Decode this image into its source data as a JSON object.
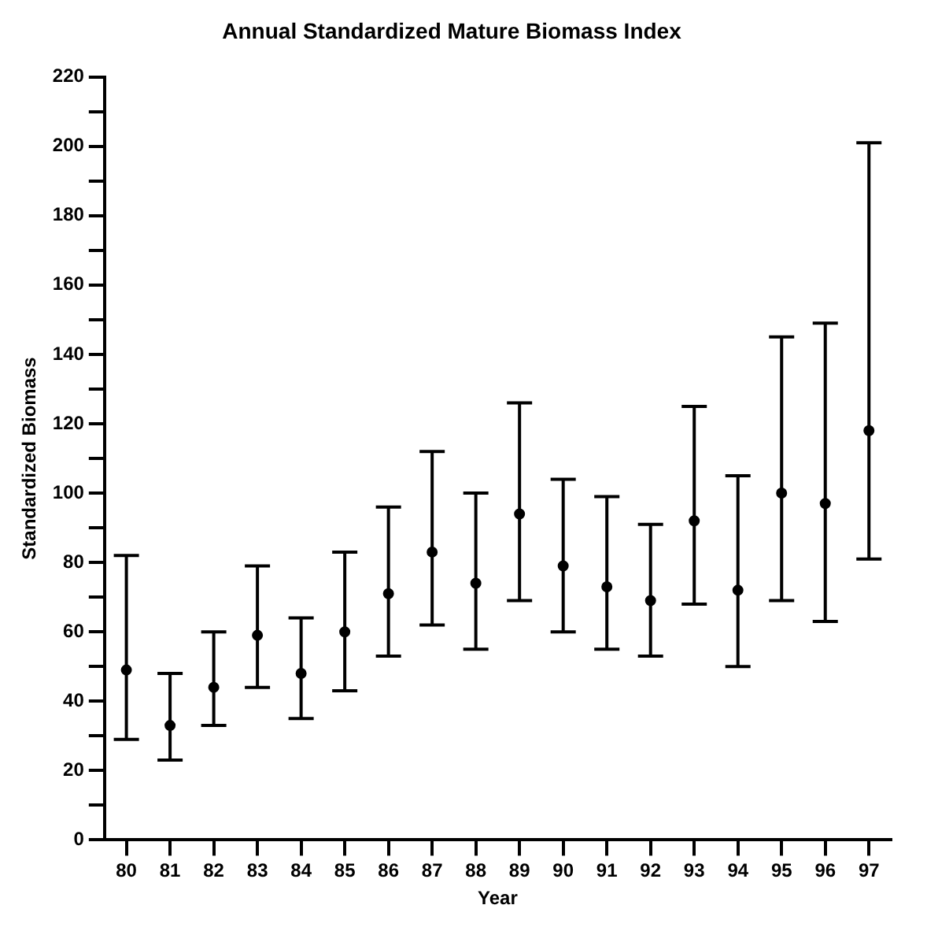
{
  "chart_data": {
    "type": "scatter",
    "title": "Annual Standardized Mature Biomass Index",
    "xlabel": "Year",
    "ylabel": "Standardized Biomass",
    "categories": [
      "80",
      "81",
      "82",
      "83",
      "84",
      "85",
      "86",
      "87",
      "88",
      "89",
      "90",
      "91",
      "92",
      "93",
      "94",
      "95",
      "96",
      "97"
    ],
    "series": [
      {
        "color": "#000000",
        "values": [
          49,
          33,
          44,
          59,
          48,
          60,
          71,
          83,
          74,
          94,
          79,
          73,
          69,
          92,
          72,
          100,
          97,
          118
        ],
        "errors": [
          [
            29,
            82
          ],
          [
            23,
            48
          ],
          [
            33,
            60
          ],
          [
            44,
            79
          ],
          [
            35,
            64
          ],
          [
            43,
            83
          ],
          [
            53,
            96
          ],
          [
            62,
            112
          ],
          [
            55,
            100
          ],
          [
            69,
            126
          ],
          [
            60,
            104
          ],
          [
            55,
            99
          ],
          [
            53,
            91
          ],
          [
            68,
            125
          ],
          [
            50,
            105
          ],
          [
            69,
            145
          ],
          [
            63,
            149
          ],
          [
            81,
            201
          ]
        ]
      }
    ],
    "ylim": [
      0,
      220
    ],
    "yticks": [
      0,
      {
        "value": 10,
        "label": null
      },
      20,
      {
        "value": 30,
        "label": null
      },
      40,
      {
        "value": 50,
        "label": null
      },
      60,
      {
        "value": 70,
        "label": null
      },
      80,
      {
        "value": 90,
        "label": null
      },
      100,
      {
        "value": 110,
        "label": null
      },
      120,
      {
        "value": 130,
        "label": null
      },
      140,
      {
        "value": 150,
        "label": null
      },
      160,
      {
        "value": 170,
        "label": null
      },
      180,
      {
        "value": 190,
        "label": null
      },
      200,
      {
        "value": 210,
        "label": null
      },
      220
    ],
    "grid": false,
    "legend": false,
    "marker": "circle"
  }
}
